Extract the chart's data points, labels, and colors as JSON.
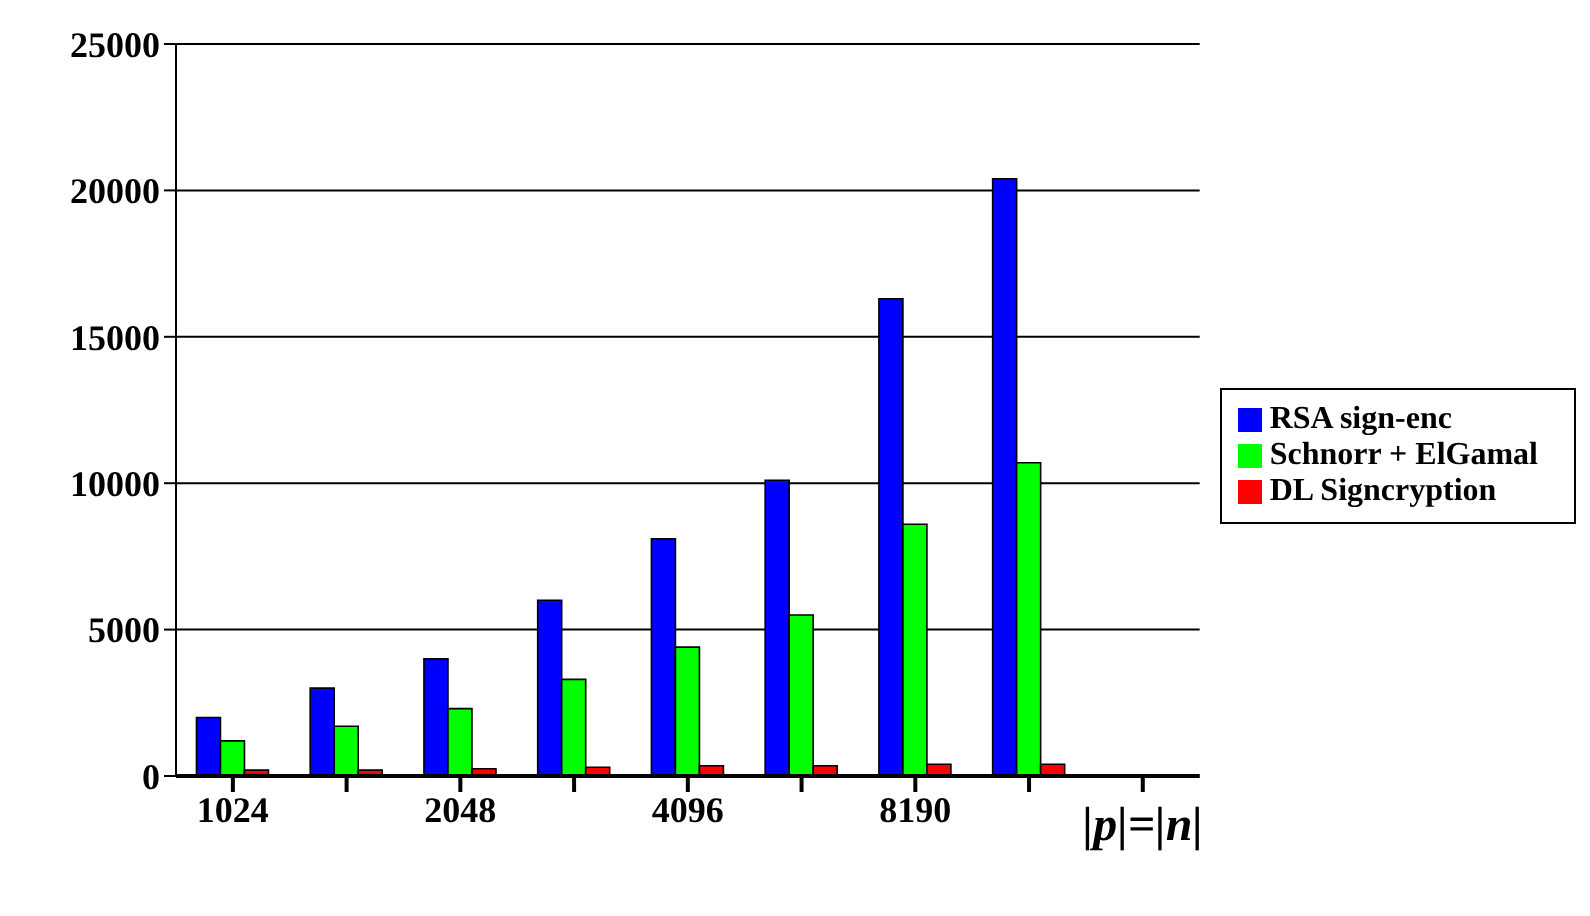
{
  "chart_data": {
    "type": "bar",
    "xlabel": "|p|=|n|",
    "categories": [
      "1024",
      null,
      "2048",
      null,
      "4096",
      null,
      "8190",
      null,
      null
    ],
    "series": [
      {
        "name": "RSA sign-enc",
        "color": "#0000ff",
        "values": [
          2000,
          3000,
          4000,
          6000,
          8100,
          10100,
          16300,
          20400,
          null
        ]
      },
      {
        "name": "Schnorr + ElGamal",
        "color": "#00ff00",
        "values": [
          1200,
          1700,
          2300,
          3300,
          4400,
          5500,
          8600,
          10700,
          null
        ]
      },
      {
        "name": "DL Signcryption",
        "color": "#ff0000",
        "values": [
          200,
          200,
          250,
          300,
          350,
          350,
          400,
          400,
          null
        ]
      }
    ],
    "ylim": [
      0,
      25000
    ],
    "yticks": [
      0,
      5000,
      10000,
      15000,
      20000,
      25000
    ],
    "grid": "y",
    "legend": "right"
  }
}
